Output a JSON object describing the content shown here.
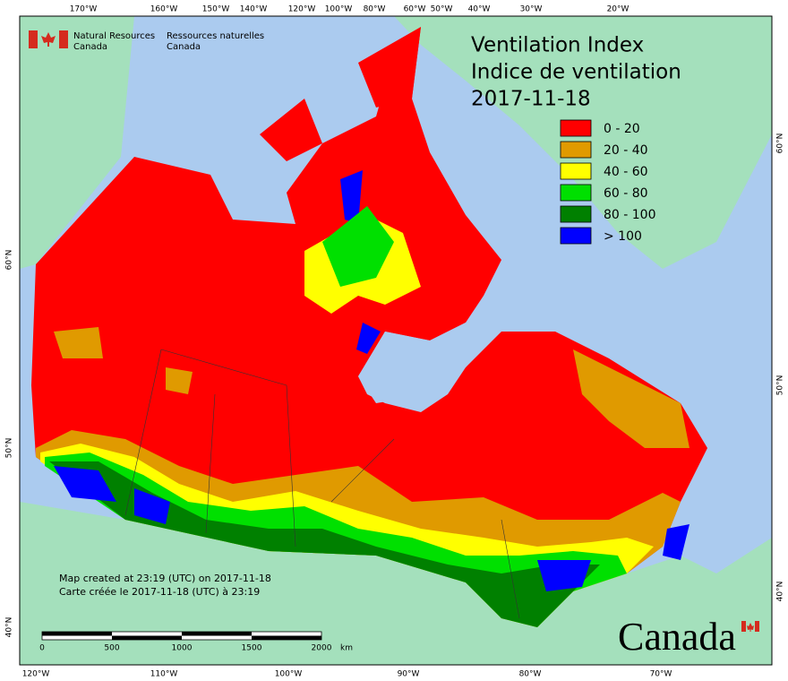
{
  "header": {
    "agency_en": [
      "Natural Resources",
      "Canada"
    ],
    "agency_fr": [
      "Ressources naturelles",
      "Canada"
    ]
  },
  "title": [
    "Ventilation Index",
    "Indice de ventilation",
    "2017-11-18"
  ],
  "legend": [
    {
      "label": "0 - 20",
      "color": "#ff0000"
    },
    {
      "label": "20 - 40",
      "color": "#e09a00"
    },
    {
      "label": "40 - 60",
      "color": "#ffff00"
    },
    {
      "label": "60 - 80",
      "color": "#00e000"
    },
    {
      "label": "80 - 100",
      "color": "#008000"
    },
    {
      "label": "> 100",
      "color": "#0000ff"
    }
  ],
  "graticule": {
    "top": [
      "170°W",
      "160°W",
      "150°W",
      "140°W",
      "120°W",
      "100°W",
      "80°W",
      "60°W",
      "50°W",
      "40°W",
      "30°W",
      "20°W"
    ],
    "bottom": [
      "120°W",
      "110°W",
      "100°W",
      "90°W",
      "80°W",
      "70°W"
    ],
    "left": [
      "60°N",
      "50°N",
      "40°N"
    ],
    "right": [
      "60°N",
      "50°N",
      "40°N"
    ]
  },
  "scale_bar": {
    "ticks": [
      "0",
      "500",
      "1000",
      "1500",
      "2000"
    ],
    "unit": "km"
  },
  "footer_note": [
    "Map created at 23:19 (UTC) on 2017-11-18",
    "Carte créée le 2017-11-18 (UTC) à 23:19"
  ],
  "wordmark": "Canada"
}
